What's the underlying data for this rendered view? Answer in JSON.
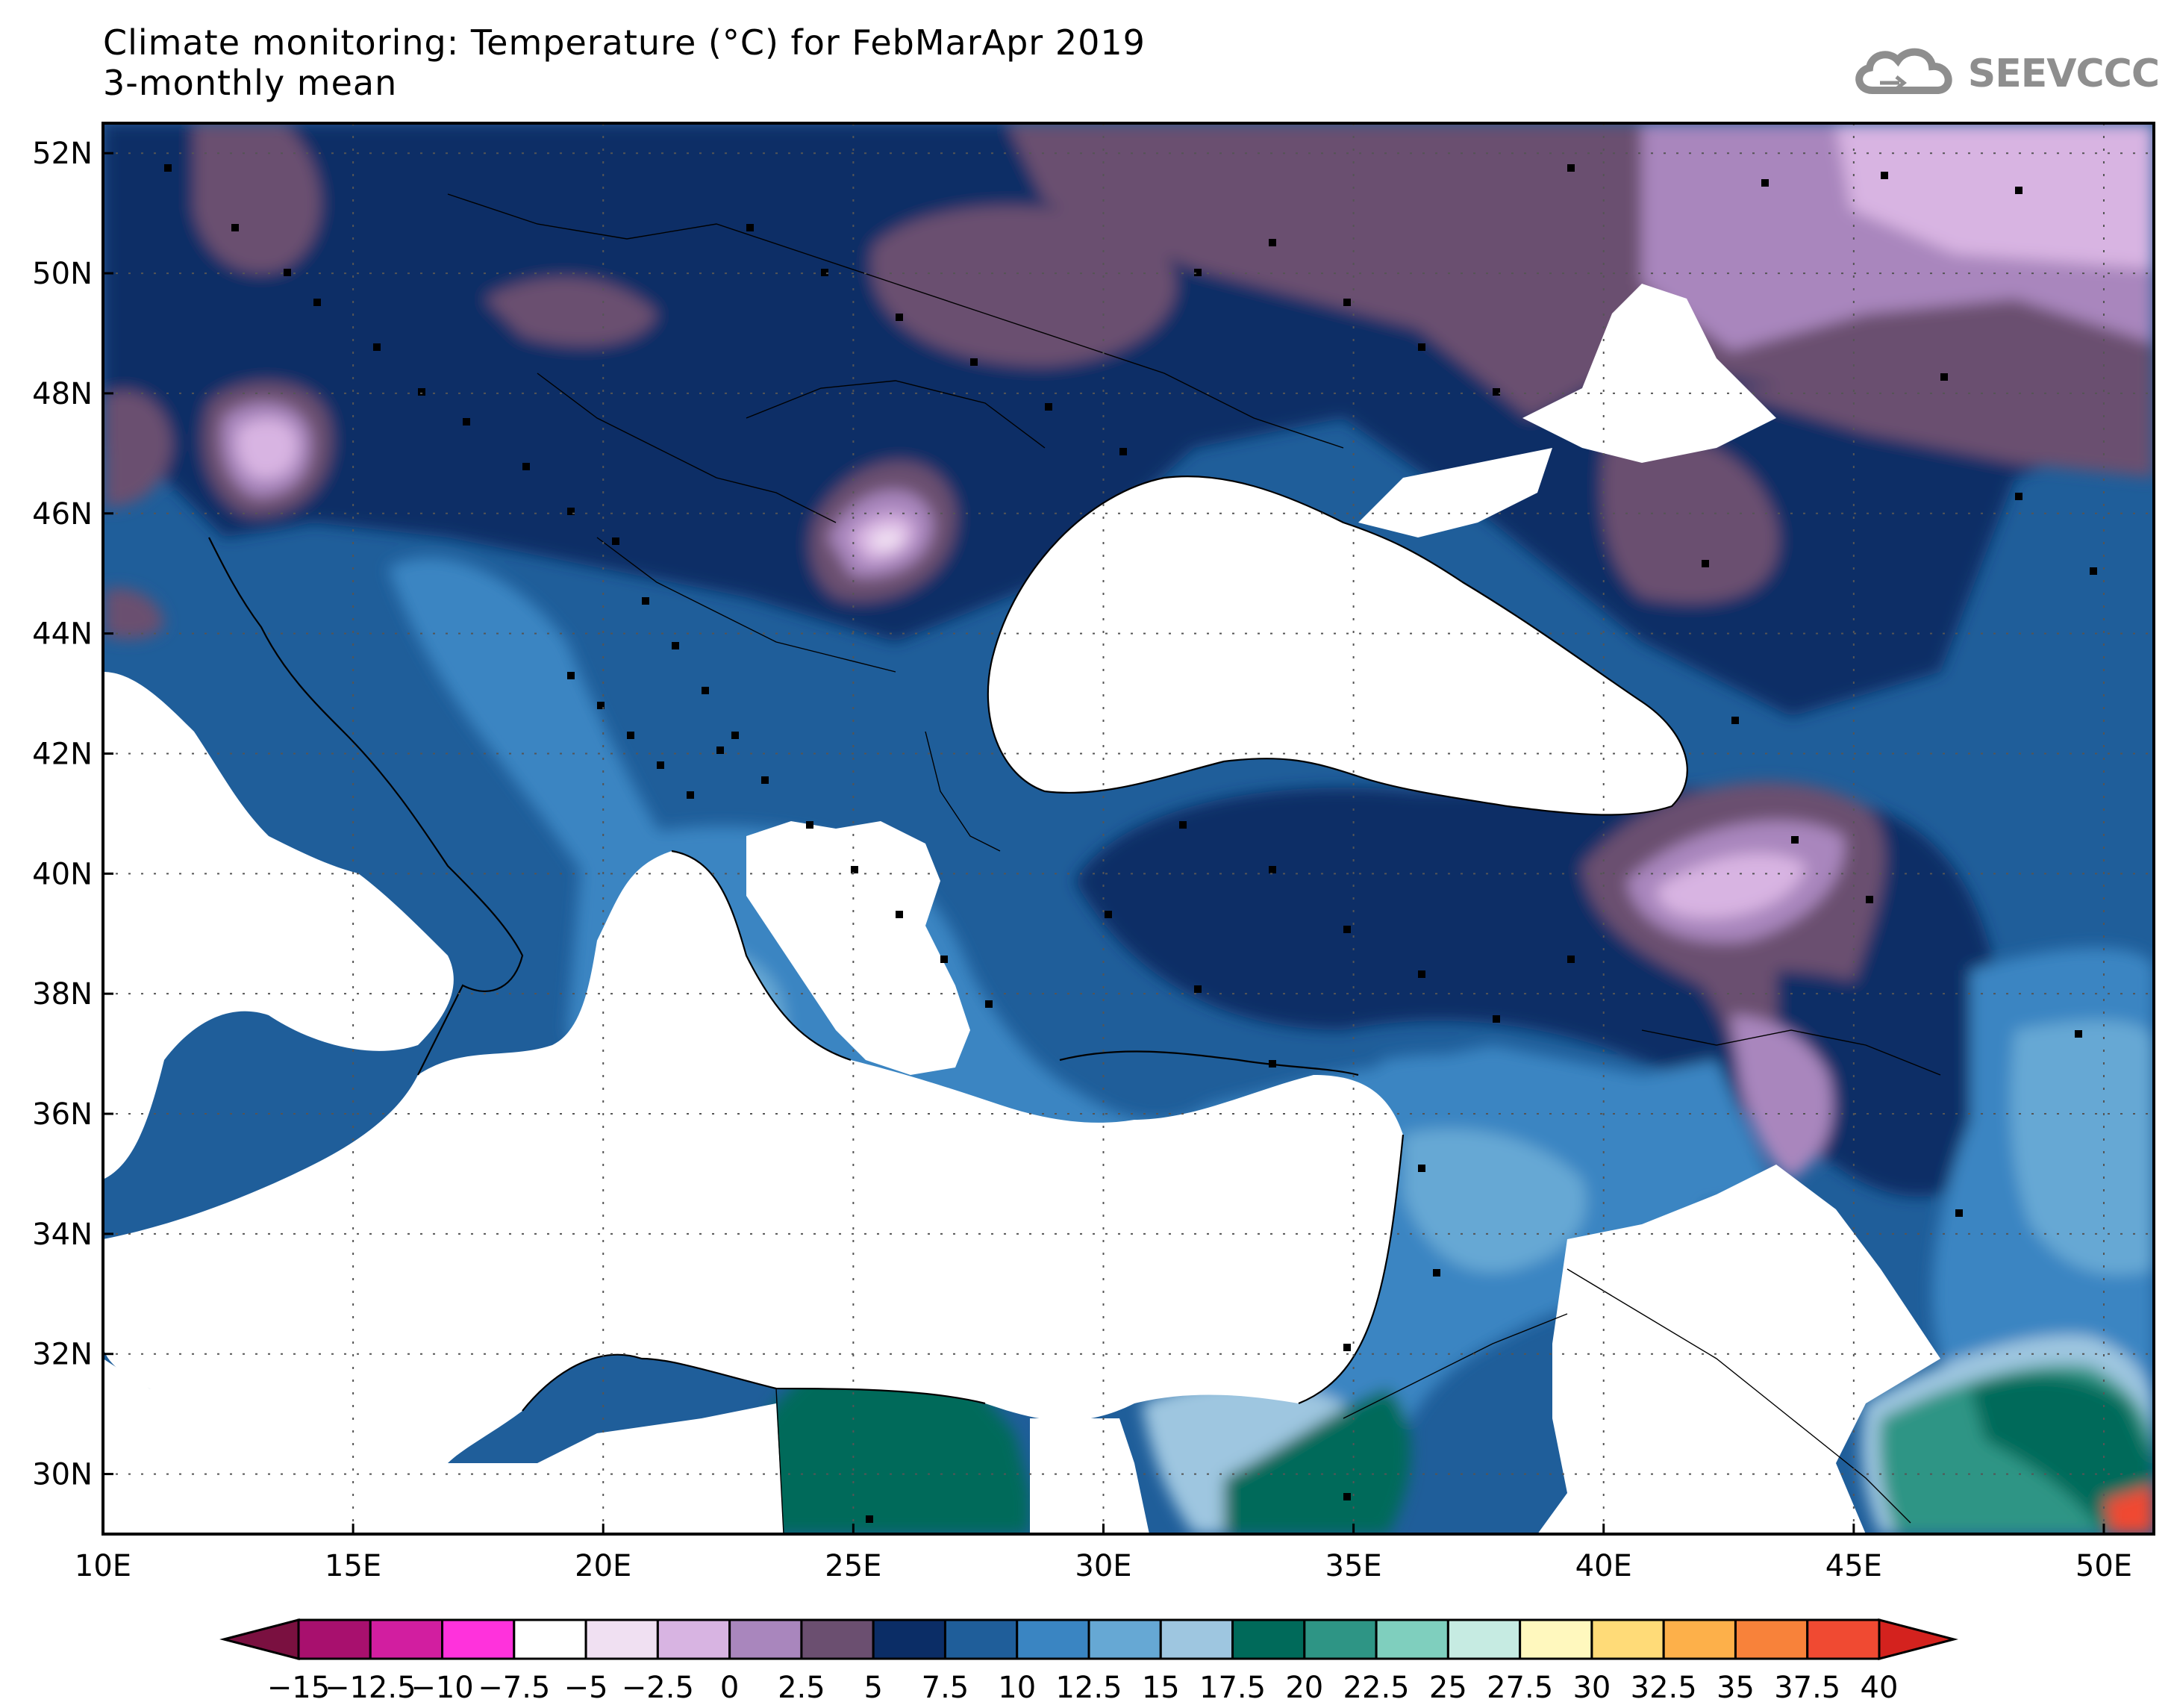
{
  "title": {
    "line1": "Climate monitoring: Temperature (°C) for FebMarApr 2019",
    "line2": "3-monthly mean"
  },
  "logo": {
    "text": "SEEVCCC",
    "icon": "cloud-icon"
  },
  "map": {
    "lon_range": [
      10,
      51
    ],
    "lat_range": [
      29,
      52.5
    ],
    "x_ticks": [
      "10E",
      "15E",
      "20E",
      "25E",
      "30E",
      "35E",
      "40E",
      "45E",
      "50E"
    ],
    "y_ticks": [
      "52N",
      "50N",
      "48N",
      "46N",
      "44N",
      "42N",
      "40N",
      "38N",
      "36N",
      "34N",
      "32N",
      "30N"
    ],
    "grid": "dotted"
  },
  "colorbar": {
    "labels": [
      "−15",
      "−12.5",
      "−10",
      "−7.5",
      "−5",
      "−2.5",
      "0",
      "2.5",
      "5",
      "7.5",
      "10",
      "12.5",
      "15",
      "17.5",
      "20",
      "22.5",
      "25",
      "27.5",
      "30",
      "32.5",
      "35",
      "37.5",
      "40"
    ],
    "colors": [
      "#7a1040",
      "#a8106e",
      "#d21ea0",
      "#ff32dc",
      "#ffffff",
      "#f0e0f2",
      "#d8b4e2",
      "#a986bd",
      "#6b4f70",
      "#0b2d66",
      "#1f5e9a",
      "#3a85c2",
      "#66a8d4",
      "#9ec6e0",
      "#006a5a",
      "#2e9585",
      "#7fcfbe",
      "#c6ebe2",
      "#fff8be",
      "#ffdb78",
      "#fdb04a",
      "#f8823a",
      "#f04a32",
      "#d4221e"
    ]
  }
}
